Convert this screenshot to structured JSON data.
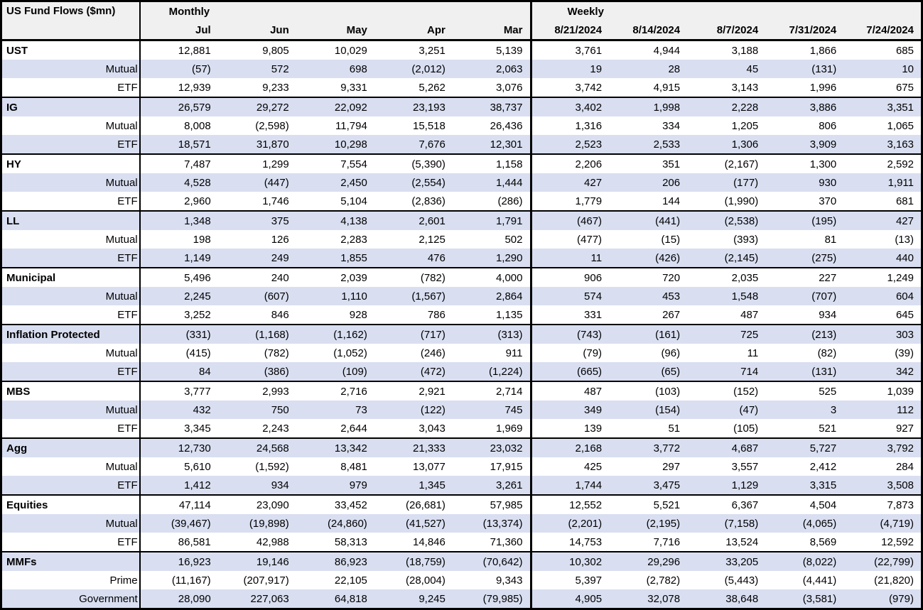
{
  "colors": {
    "band_row": "#d9dff1",
    "header_bg": "#f0f0f0",
    "border": "#000000",
    "text": "#000000"
  },
  "chart_data": {
    "type": "table",
    "title": "US Fund Flows ($mn)",
    "column_groups": [
      {
        "label": "Monthly",
        "columns": [
          "Jul",
          "Jun",
          "May",
          "Apr",
          "Mar"
        ]
      },
      {
        "label": "Weekly",
        "columns": [
          "8/21/2024",
          "8/14/2024",
          "8/7/2024",
          "7/31/2024",
          "7/24/2024"
        ]
      }
    ],
    "row_groups": [
      {
        "name": "UST",
        "rows": [
          {
            "label": "UST",
            "bold": true,
            "monthly": [
              "12,881",
              "9,805",
              "10,029",
              "3,251",
              "5,139"
            ],
            "weekly": [
              "3,761",
              "4,944",
              "3,188",
              "1,866",
              "685"
            ]
          },
          {
            "label": "Mutual",
            "monthly": [
              "(57)",
              "572",
              "698",
              "(2,012)",
              "2,063"
            ],
            "weekly": [
              "19",
              "28",
              "45",
              "(131)",
              "10"
            ]
          },
          {
            "label": "ETF",
            "monthly": [
              "12,939",
              "9,233",
              "9,331",
              "5,262",
              "3,076"
            ],
            "weekly": [
              "3,742",
              "4,915",
              "3,143",
              "1,996",
              "675"
            ]
          }
        ]
      },
      {
        "name": "IG",
        "rows": [
          {
            "label": "IG",
            "bold": true,
            "monthly": [
              "26,579",
              "29,272",
              "22,092",
              "23,193",
              "38,737"
            ],
            "weekly": [
              "3,402",
              "1,998",
              "2,228",
              "3,886",
              "3,351"
            ]
          },
          {
            "label": "Mutual",
            "monthly": [
              "8,008",
              "(2,598)",
              "11,794",
              "15,518",
              "26,436"
            ],
            "weekly": [
              "1,316",
              "334",
              "1,205",
              "806",
              "1,065"
            ]
          },
          {
            "label": "ETF",
            "monthly": [
              "18,571",
              "31,870",
              "10,298",
              "7,676",
              "12,301"
            ],
            "weekly": [
              "2,523",
              "2,533",
              "1,306",
              "3,909",
              "3,163"
            ]
          }
        ]
      },
      {
        "name": "HY",
        "rows": [
          {
            "label": "HY",
            "bold": true,
            "monthly": [
              "7,487",
              "1,299",
              "7,554",
              "(5,390)",
              "1,158"
            ],
            "weekly": [
              "2,206",
              "351",
              "(2,167)",
              "1,300",
              "2,592"
            ]
          },
          {
            "label": "Mutual",
            "monthly": [
              "4,528",
              "(447)",
              "2,450",
              "(2,554)",
              "1,444"
            ],
            "weekly": [
              "427",
              "206",
              "(177)",
              "930",
              "1,911"
            ]
          },
          {
            "label": "ETF",
            "monthly": [
              "2,960",
              "1,746",
              "5,104",
              "(2,836)",
              "(286)"
            ],
            "weekly": [
              "1,779",
              "144",
              "(1,990)",
              "370",
              "681"
            ]
          }
        ]
      },
      {
        "name": "LL",
        "rows": [
          {
            "label": "LL",
            "bold": true,
            "monthly": [
              "1,348",
              "375",
              "4,138",
              "2,601",
              "1,791"
            ],
            "weekly": [
              "(467)",
              "(441)",
              "(2,538)",
              "(195)",
              "427"
            ]
          },
          {
            "label": "Mutual",
            "monthly": [
              "198",
              "126",
              "2,283",
              "2,125",
              "502"
            ],
            "weekly": [
              "(477)",
              "(15)",
              "(393)",
              "81",
              "(13)"
            ]
          },
          {
            "label": "ETF",
            "monthly": [
              "1,149",
              "249",
              "1,855",
              "476",
              "1,290"
            ],
            "weekly": [
              "11",
              "(426)",
              "(2,145)",
              "(275)",
              "440"
            ]
          }
        ]
      },
      {
        "name": "Municipal",
        "rows": [
          {
            "label": "Municipal",
            "bold": true,
            "monthly": [
              "5,496",
              "240",
              "2,039",
              "(782)",
              "4,000"
            ],
            "weekly": [
              "906",
              "720",
              "2,035",
              "227",
              "1,249"
            ]
          },
          {
            "label": "Mutual",
            "monthly": [
              "2,245",
              "(607)",
              "1,110",
              "(1,567)",
              "2,864"
            ],
            "weekly": [
              "574",
              "453",
              "1,548",
              "(707)",
              "604"
            ]
          },
          {
            "label": "ETF",
            "monthly": [
              "3,252",
              "846",
              "928",
              "786",
              "1,135"
            ],
            "weekly": [
              "331",
              "267",
              "487",
              "934",
              "645"
            ]
          }
        ]
      },
      {
        "name": "Inflation Protected",
        "rows": [
          {
            "label": "Inflation Protected",
            "bold": true,
            "monthly": [
              "(331)",
              "(1,168)",
              "(1,162)",
              "(717)",
              "(313)"
            ],
            "weekly": [
              "(743)",
              "(161)",
              "725",
              "(213)",
              "303"
            ]
          },
          {
            "label": "Mutual",
            "monthly": [
              "(415)",
              "(782)",
              "(1,052)",
              "(246)",
              "911"
            ],
            "weekly": [
              "(79)",
              "(96)",
              "11",
              "(82)",
              "(39)"
            ]
          },
          {
            "label": "ETF",
            "monthly": [
              "84",
              "(386)",
              "(109)",
              "(472)",
              "(1,224)"
            ],
            "weekly": [
              "(665)",
              "(65)",
              "714",
              "(131)",
              "342"
            ]
          }
        ]
      },
      {
        "name": "MBS",
        "rows": [
          {
            "label": "MBS",
            "bold": true,
            "monthly": [
              "3,777",
              "2,993",
              "2,716",
              "2,921",
              "2,714"
            ],
            "weekly": [
              "487",
              "(103)",
              "(152)",
              "525",
              "1,039"
            ]
          },
          {
            "label": "Mutual",
            "monthly": [
              "432",
              "750",
              "73",
              "(122)",
              "745"
            ],
            "weekly": [
              "349",
              "(154)",
              "(47)",
              "3",
              "112"
            ]
          },
          {
            "label": "ETF",
            "monthly": [
              "3,345",
              "2,243",
              "2,644",
              "3,043",
              "1,969"
            ],
            "weekly": [
              "139",
              "51",
              "(105)",
              "521",
              "927"
            ]
          }
        ]
      },
      {
        "name": "Agg",
        "rows": [
          {
            "label": "Agg",
            "bold": true,
            "monthly": [
              "12,730",
              "24,568",
              "13,342",
              "21,333",
              "23,032"
            ],
            "weekly": [
              "2,168",
              "3,772",
              "4,687",
              "5,727",
              "3,792"
            ]
          },
          {
            "label": "Mutual",
            "monthly": [
              "5,610",
              "(1,592)",
              "8,481",
              "13,077",
              "17,915"
            ],
            "weekly": [
              "425",
              "297",
              "3,557",
              "2,412",
              "284"
            ]
          },
          {
            "label": "ETF",
            "monthly": [
              "1,412",
              "934",
              "979",
              "1,345",
              "3,261"
            ],
            "weekly": [
              "1,744",
              "3,475",
              "1,129",
              "3,315",
              "3,508"
            ]
          }
        ]
      },
      {
        "name": "Equities",
        "rows": [
          {
            "label": "Equities",
            "bold": true,
            "monthly": [
              "47,114",
              "23,090",
              "33,452",
              "(26,681)",
              "57,985"
            ],
            "weekly": [
              "12,552",
              "5,521",
              "6,367",
              "4,504",
              "7,873"
            ]
          },
          {
            "label": "Mutual",
            "monthly": [
              "(39,467)",
              "(19,898)",
              "(24,860)",
              "(41,527)",
              "(13,374)"
            ],
            "weekly": [
              "(2,201)",
              "(2,195)",
              "(7,158)",
              "(4,065)",
              "(4,719)"
            ]
          },
          {
            "label": "ETF",
            "monthly": [
              "86,581",
              "42,988",
              "58,313",
              "14,846",
              "71,360"
            ],
            "weekly": [
              "14,753",
              "7,716",
              "13,524",
              "8,569",
              "12,592"
            ]
          }
        ]
      },
      {
        "name": "MMFs",
        "rows": [
          {
            "label": "MMFs",
            "bold": true,
            "monthly": [
              "16,923",
              "19,146",
              "86,923",
              "(18,759)",
              "(70,642)"
            ],
            "weekly": [
              "10,302",
              "29,296",
              "33,205",
              "(8,022)",
              "(22,799)"
            ]
          },
          {
            "label": "Prime",
            "monthly": [
              "(11,167)",
              "(207,917)",
              "22,105",
              "(28,004)",
              "9,343"
            ],
            "weekly": [
              "5,397",
              "(2,782)",
              "(5,443)",
              "(4,441)",
              "(21,820)"
            ]
          },
          {
            "label": "Government",
            "monthly": [
              "28,090",
              "227,063",
              "64,818",
              "9,245",
              "(79,985)"
            ],
            "weekly": [
              "4,905",
              "32,078",
              "38,648",
              "(3,581)",
              "(979)"
            ]
          }
        ]
      }
    ]
  }
}
